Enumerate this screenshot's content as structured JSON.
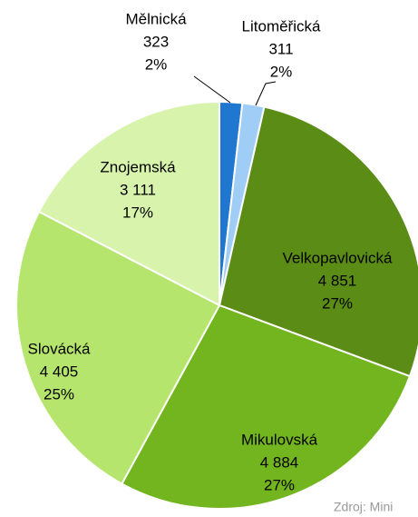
{
  "chart_data": {
    "type": "pie",
    "categories": [
      "Mělnická",
      "Litoměřická",
      "Velkopavlovická",
      "Mikulovská",
      "Slovácká",
      "Znojemská"
    ],
    "values": [
      323,
      311,
      4851,
      4884,
      4405,
      3111
    ],
    "value_labels": [
      "323",
      "311",
      "4 851",
      "4 884",
      "4 405",
      "3 111"
    ],
    "percent_labels": [
      "2%",
      "2%",
      "27%",
      "27%",
      "25%",
      "17%"
    ],
    "colors": [
      "#1f77d0",
      "#9fcdf5",
      "#5b8c15",
      "#72b51f",
      "#b5e56c",
      "#d8f3ab"
    ],
    "source": "Zdroj: Mini"
  }
}
